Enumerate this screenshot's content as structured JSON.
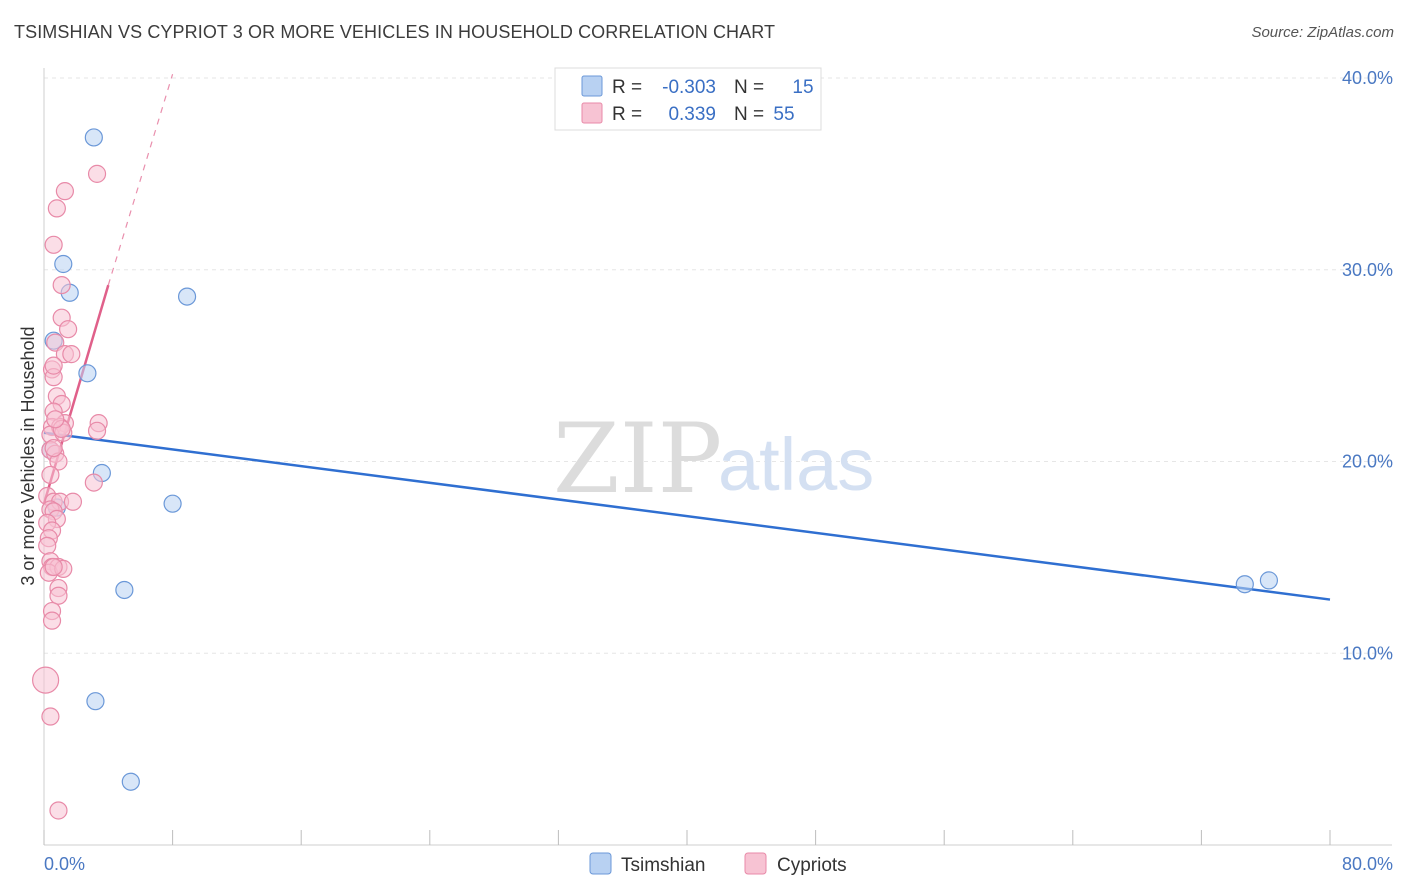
{
  "title": "TSIMSHIAN VS CYPRIOT 3 OR MORE VEHICLES IN HOUSEHOLD CORRELATION CHART",
  "source": "Source: ZipAtlas.com",
  "watermark": {
    "zip": "ZIP",
    "atlas": "atlas"
  },
  "colors": {
    "tsimshian_fill": "#b8d1f2",
    "tsimshian_stroke": "#6b98d8",
    "tsimshian_line": "#2f6fd1",
    "cypriot_fill": "#f7c3d3",
    "cypriot_stroke": "#e88aa8",
    "cypriot_line": "#e0608a",
    "grid": "#e6e6e6",
    "tick_label": "#4a78c2"
  },
  "chart_data": {
    "type": "scatter",
    "title": "TSIMSHIAN VS CYPRIOT 3 OR MORE VEHICLES IN HOUSEHOLD CORRELATION CHART",
    "xlabel": "",
    "ylabel": "3 or more Vehicles in Household",
    "xlim": [
      0,
      80
    ],
    "ylim": [
      0,
      40
    ],
    "x_tick_labels": [
      "0.0%",
      "80.0%"
    ],
    "y_ticks": [
      10,
      20,
      30,
      40
    ],
    "y_tick_labels": [
      "10.0%",
      "20.0%",
      "30.0%",
      "40.0%"
    ],
    "grid": true,
    "legend": {
      "placement": "top-center",
      "entries": [
        {
          "r_label": "R =",
          "r_value": "-0.303",
          "n_label": "N =",
          "n_value": "15"
        },
        {
          "r_label": "R =",
          "r_value": "0.339",
          "n_label": "N =",
          "n_value": "55"
        }
      ]
    },
    "series": [
      {
        "name": "Tsimshian",
        "points": [
          [
            3.1,
            36.9
          ],
          [
            1.2,
            30.3
          ],
          [
            1.6,
            28.8
          ],
          [
            8.9,
            28.6
          ],
          [
            0.6,
            26.3
          ],
          [
            2.7,
            24.6
          ],
          [
            0.4,
            20.6
          ],
          [
            3.6,
            19.4
          ],
          [
            0.8,
            17.6
          ],
          [
            8.0,
            17.8
          ],
          [
            5.0,
            13.3
          ],
          [
            3.2,
            7.5
          ],
          [
            5.4,
            3.3
          ],
          [
            74.7,
            13.6
          ],
          [
            76.2,
            13.8
          ]
        ],
        "trend": {
          "x": [
            0,
            80
          ],
          "y": [
            21.5,
            12.8
          ]
        }
      },
      {
        "name": "Cypriots",
        "points": [
          [
            3.3,
            35.0
          ],
          [
            1.3,
            34.1
          ],
          [
            0.8,
            33.2
          ],
          [
            0.6,
            31.3
          ],
          [
            1.1,
            29.2
          ],
          [
            1.1,
            27.5
          ],
          [
            1.5,
            26.9
          ],
          [
            0.7,
            26.2
          ],
          [
            1.3,
            25.6
          ],
          [
            1.7,
            25.6
          ],
          [
            0.5,
            24.8
          ],
          [
            0.6,
            24.4
          ],
          [
            0.6,
            25.0
          ],
          [
            0.8,
            23.4
          ],
          [
            1.1,
            23.0
          ],
          [
            0.6,
            22.6
          ],
          [
            1.3,
            22.0
          ],
          [
            3.4,
            22.0
          ],
          [
            0.5,
            21.8
          ],
          [
            1.0,
            21.8
          ],
          [
            0.4,
            21.4
          ],
          [
            3.3,
            21.6
          ],
          [
            1.2,
            21.5
          ],
          [
            0.4,
            20.6
          ],
          [
            0.7,
            20.4
          ],
          [
            0.9,
            20.0
          ],
          [
            0.4,
            19.3
          ],
          [
            3.1,
            18.9
          ],
          [
            0.2,
            18.2
          ],
          [
            0.6,
            17.9
          ],
          [
            1.0,
            17.9
          ],
          [
            1.8,
            17.9
          ],
          [
            0.4,
            17.5
          ],
          [
            0.6,
            17.4
          ],
          [
            0.8,
            17.0
          ],
          [
            0.2,
            16.8
          ],
          [
            0.5,
            16.4
          ],
          [
            0.3,
            16.0
          ],
          [
            0.2,
            15.6
          ],
          [
            0.4,
            14.8
          ],
          [
            0.5,
            14.5
          ],
          [
            0.9,
            14.5
          ],
          [
            0.3,
            14.2
          ],
          [
            1.2,
            14.4
          ],
          [
            0.6,
            14.5
          ],
          [
            0.9,
            13.4
          ],
          [
            0.9,
            13.0
          ],
          [
            0.5,
            12.2
          ],
          [
            0.5,
            11.7
          ],
          [
            0.1,
            8.6
          ],
          [
            0.4,
            6.7
          ],
          [
            0.9,
            1.8
          ],
          [
            0.6,
            20.7
          ],
          [
            1.1,
            21.7
          ],
          [
            0.7,
            22.2
          ]
        ],
        "trend": {
          "x": [
            0,
            4.0
          ],
          "y": [
            17.8,
            29.2
          ]
        },
        "trend_extension": {
          "x": [
            4.0,
            8.0
          ],
          "y": [
            29.2,
            40.2
          ]
        }
      }
    ]
  },
  "bottom_legend": [
    "Tsimshian",
    "Cypriots"
  ]
}
